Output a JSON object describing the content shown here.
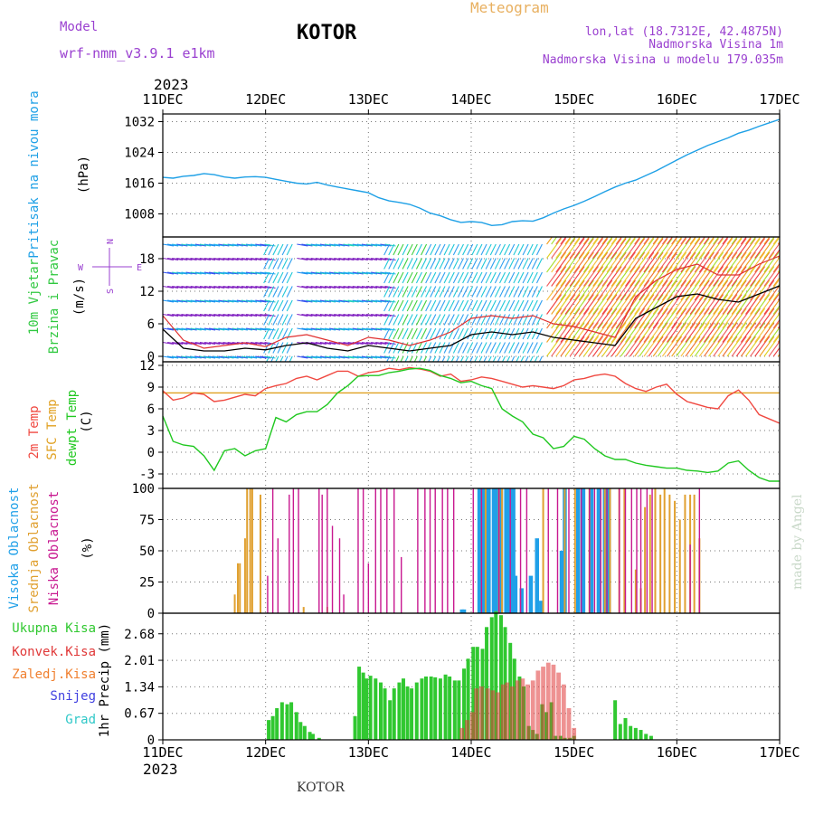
{
  "header": {
    "model_label": "Model",
    "model_name": "wrf-nmm_v3.9.1  e1km",
    "station": "KOTOR",
    "meteogram": "Meteogram",
    "lonlat": "lon,lat (18.7312E, 42.4875N)",
    "elevation": "Nadmorska Visina 1m",
    "model_elevation": "Nadmorska Visina u modelu 179.035m",
    "footer_station": "KOTOR",
    "credit": "made by Angel"
  },
  "colors": {
    "pressure": "#1ea0e6",
    "temp2m": "#f04840",
    "sfc": "#e0a020",
    "dew": "#20c820",
    "high_cloud": "#20a0e8",
    "mid_cloud": "#e0a030",
    "low_cloud": "#c81890",
    "total_precip": "#30c830",
    "conv_precip": "#e03838",
    "ice": "#f08030",
    "snow": "#4040e0",
    "hail": "#30c8c8",
    "wind_purple": "#8020c0",
    "wind_green": "#30c840"
  },
  "chart_data": [
    {
      "type": "line",
      "panel": "pressure",
      "year": "2023",
      "date_ticks": [
        "11DEC",
        "12DEC",
        "13DEC",
        "14DEC",
        "15DEC",
        "16DEC",
        "17DEC"
      ],
      "x_unit": "day",
      "xlim": [
        0,
        6
      ],
      "ylabel": [
        "Pritisak na nivou mora",
        "(hPa)"
      ],
      "yticks": [
        1008,
        1016,
        1024,
        1032
      ],
      "ylim": [
        1002,
        1034
      ],
      "series": [
        {
          "key": "pressure",
          "x": [
            0,
            0.1,
            0.2,
            0.3,
            0.4,
            0.5,
            0.6,
            0.7,
            0.8,
            0.9,
            1,
            1.1,
            1.2,
            1.3,
            1.4,
            1.5,
            1.6,
            1.7,
            1.8,
            1.9,
            2,
            2.1,
            2.2,
            2.3,
            2.4,
            2.5,
            2.6,
            2.7,
            2.8,
            2.9,
            3,
            3.1,
            3.2,
            3.3,
            3.4,
            3.5,
            3.6,
            3.7,
            3.8,
            3.9,
            4,
            4.1,
            4.2,
            4.3,
            4.4,
            4.5,
            4.6,
            4.7,
            4.8,
            4.9,
            5,
            5.1,
            5.2,
            5.3,
            5.4,
            5.5,
            5.6,
            5.7,
            5.8,
            5.9,
            6
          ],
          "y": [
            1017.5,
            1017.3,
            1017.8,
            1018.0,
            1018.5,
            1018.2,
            1017.6,
            1017.3,
            1017.6,
            1017.7,
            1017.5,
            1017.0,
            1016.5,
            1016.0,
            1015.8,
            1016.2,
            1015.5,
            1015.0,
            1014.5,
            1014.0,
            1013.5,
            1012.2,
            1011.4,
            1011.0,
            1010.5,
            1009.5,
            1008.2,
            1007.5,
            1006.5,
            1005.8,
            1006.0,
            1005.8,
            1005.0,
            1005.2,
            1006.0,
            1006.2,
            1006.1,
            1007.0,
            1008.2,
            1009.3,
            1010.2,
            1011.3,
            1012.5,
            1013.8,
            1015.0,
            1016.0,
            1016.8,
            1018.0,
            1019.2,
            1020.6,
            1022.0,
            1023.4,
            1024.6,
            1025.8,
            1026.8,
            1027.8,
            1029.0,
            1029.8,
            1030.8,
            1031.7,
            1032.6
          ]
        }
      ]
    },
    {
      "type": "line",
      "panel": "wind",
      "ylabel": [
        "10m Vjetar",
        "Brzina i Pravac",
        "(m/s)"
      ],
      "direction_key": {
        "w": "W",
        "e": "E",
        "n": "N",
        "s": "S"
      },
      "yticks": [
        0,
        6,
        12,
        18
      ],
      "ylim": [
        -1,
        22
      ],
      "series": [
        {
          "key": "speed_black",
          "x": [
            0,
            0.2,
            0.4,
            0.6,
            0.8,
            1,
            1.2,
            1.4,
            1.6,
            1.8,
            2,
            2.2,
            2.4,
            2.6,
            2.8,
            3,
            3.2,
            3.4,
            3.6,
            3.8,
            4,
            4.2,
            4.4,
            4.6,
            4.8,
            5,
            5.2,
            5.4,
            5.6,
            5.8,
            6
          ],
          "y": [
            5.0,
            1.5,
            1.0,
            1.0,
            1.5,
            1.2,
            2.0,
            2.5,
            1.5,
            1.0,
            2.0,
            1.5,
            1.0,
            1.5,
            2.0,
            4.0,
            4.5,
            4.0,
            4.5,
            3.5,
            3.0,
            2.5,
            2.0,
            7.0,
            9.0,
            11.0,
            11.5,
            10.5,
            10.0,
            11.5,
            13.0
          ]
        },
        {
          "key": "speed_red",
          "x": [
            0,
            0.2,
            0.4,
            0.6,
            0.8,
            1,
            1.2,
            1.4,
            1.6,
            1.8,
            2,
            2.2,
            2.4,
            2.6,
            2.8,
            3,
            3.2,
            3.4,
            3.6,
            3.8,
            4,
            4.2,
            4.4,
            4.6,
            4.8,
            5,
            5.2,
            5.4,
            5.6,
            5.8,
            6
          ],
          "y": [
            7.5,
            3.0,
            1.5,
            2.0,
            2.5,
            1.8,
            3.5,
            4.0,
            3.0,
            2.0,
            3.5,
            3.0,
            2.0,
            3.0,
            4.5,
            7.0,
            7.5,
            7.0,
            7.5,
            6.0,
            5.5,
            4.5,
            3.5,
            11.0,
            14.0,
            16.0,
            17.0,
            15.0,
            15.0,
            17.0,
            18.5
          ]
        }
      ]
    },
    {
      "type": "line",
      "panel": "temperature",
      "ylabel": [
        "2m Temp",
        "SFC Temp",
        "dewpt Temp",
        "(C)"
      ],
      "yticks": [
        -3,
        0,
        3,
        6,
        9,
        12
      ],
      "ylim": [
        -5,
        12.5
      ],
      "series": [
        {
          "key": "temp2m",
          "x": [
            0,
            0.1,
            0.2,
            0.3,
            0.4,
            0.5,
            0.6,
            0.7,
            0.8,
            0.9,
            1,
            1.1,
            1.2,
            1.3,
            1.4,
            1.5,
            1.6,
            1.7,
            1.8,
            1.9,
            2,
            2.1,
            2.2,
            2.3,
            2.4,
            2.5,
            2.6,
            2.7,
            2.8,
            2.9,
            3,
            3.1,
            3.2,
            3.3,
            3.4,
            3.5,
            3.6,
            3.7,
            3.8,
            3.9,
            4,
            4.1,
            4.2,
            4.3,
            4.4,
            4.5,
            4.6,
            4.7,
            4.8,
            4.9,
            5,
            5.1,
            5.2,
            5.3,
            5.4,
            5.5,
            5.6,
            5.7,
            5.8,
            5.9,
            6
          ],
          "y": [
            8.5,
            7.2,
            7.5,
            8.2,
            8.0,
            7.0,
            7.2,
            7.6,
            8.0,
            7.8,
            8.8,
            9.2,
            9.5,
            10.2,
            10.5,
            10.0,
            10.6,
            11.2,
            11.2,
            10.5,
            11.0,
            11.2,
            11.6,
            11.4,
            11.7,
            11.5,
            11.2,
            10.5,
            10.8,
            9.8,
            10.0,
            10.4,
            10.2,
            9.8,
            9.4,
            9.0,
            9.2,
            9.0,
            8.8,
            9.2,
            10.0,
            10.2,
            10.6,
            10.8,
            10.5,
            9.5,
            8.8,
            8.4,
            9.0,
            9.4,
            8.0,
            7.0,
            6.6,
            6.2,
            6.0,
            7.8,
            8.6,
            7.2,
            5.2,
            4.6,
            4.0
          ]
        },
        {
          "key": "sfc",
          "x": [
            0,
            6
          ],
          "y": [
            8.2,
            8.2
          ]
        },
        {
          "key": "dew",
          "x": [
            0,
            0.1,
            0.2,
            0.3,
            0.4,
            0.5,
            0.6,
            0.7,
            0.8,
            0.9,
            1,
            1.1,
            1.2,
            1.3,
            1.4,
            1.5,
            1.6,
            1.7,
            1.8,
            1.9,
            2,
            2.1,
            2.2,
            2.3,
            2.4,
            2.5,
            2.6,
            2.7,
            2.8,
            2.9,
            3,
            3.1,
            3.2,
            3.3,
            3.4,
            3.5,
            3.6,
            3.7,
            3.8,
            3.9,
            4,
            4.1,
            4.2,
            4.3,
            4.4,
            4.5,
            4.6,
            4.7,
            4.8,
            4.9,
            5,
            5.1,
            5.2,
            5.3,
            5.4,
            5.5,
            5.6,
            5.7,
            5.8,
            5.9,
            6
          ],
          "y": [
            5.0,
            1.5,
            1.0,
            0.8,
            -0.5,
            -2.5,
            0.2,
            0.5,
            -0.5,
            0.2,
            0.5,
            4.8,
            4.2,
            5.2,
            5.6,
            5.6,
            6.6,
            8.2,
            9.2,
            10.5,
            10.6,
            10.6,
            11.0,
            11.2,
            11.5,
            11.6,
            11.3,
            10.6,
            10.2,
            9.6,
            9.8,
            9.2,
            8.8,
            6.0,
            5.0,
            4.2,
            2.5,
            2.0,
            0.5,
            0.8,
            2.2,
            1.8,
            0.5,
            -0.5,
            -1.0,
            -1.0,
            -1.5,
            -1.8,
            -2.0,
            -2.2,
            -2.2,
            -2.5,
            -2.6,
            -2.8,
            -2.6,
            -1.5,
            -1.2,
            -2.5,
            -3.5,
            -4.0,
            -4.0
          ]
        }
      ]
    },
    {
      "type": "bar",
      "panel": "cloud",
      "ylabel": [
        "Visoka Oblacnost",
        "Srednja Oblacnost",
        "Niska Oblacnost",
        "(%)"
      ],
      "yticks": [
        0,
        25,
        50,
        75,
        100
      ],
      "ylim": [
        0,
        100
      ],
      "series": [
        {
          "key": "high_cloud",
          "x": [
            2.91,
            2.93,
            3.08,
            3.1,
            3.12,
            3.15,
            3.17,
            3.22,
            3.24,
            3.27,
            3.29,
            3.34,
            3.36,
            3.38,
            3.41,
            3.43,
            3.49,
            3.58,
            3.64,
            3.68,
            3.88,
            3.91,
            4.04,
            4.09,
            4.17,
            4.24,
            4.3,
            4.34
          ],
          "y": [
            3,
            3,
            100,
            100,
            100,
            100,
            100,
            100,
            100,
            100,
            100,
            100,
            100,
            100,
            100,
            30,
            20,
            30,
            60,
            10,
            50,
            100,
            100,
            100,
            100,
            100,
            100,
            100
          ]
        },
        {
          "key": "mid_cloud",
          "x": [
            0.7,
            0.73,
            0.75,
            0.8,
            0.82,
            0.85,
            0.87,
            0.95,
            1.37,
            1.6,
            3.14,
            3.27,
            3.3,
            3.7,
            3.91,
            4.01,
            4.15,
            4.3,
            4.35,
            4.44,
            4.49,
            4.6,
            4.65,
            4.69,
            4.74,
            4.79,
            4.84,
            4.88,
            4.93,
            4.98,
            5.03,
            5.08,
            5.13,
            5.17,
            5.22
          ],
          "y": [
            15,
            40,
            40,
            60,
            100,
            100,
            100,
            95,
            5,
            5,
            100,
            100,
            100,
            100,
            100,
            100,
            100,
            100,
            100,
            100,
            100,
            35,
            20,
            85,
            95,
            100,
            95,
            100,
            95,
            90,
            75,
            95,
            95,
            95,
            60
          ]
        },
        {
          "key": "low_cloud",
          "x": [
            1.02,
            1.07,
            1.12,
            1.23,
            1.27,
            1.32,
            1.52,
            1.55,
            1.6,
            1.65,
            1.72,
            1.76,
            1.9,
            1.95,
            2.0,
            2.07,
            2.12,
            2.18,
            2.25,
            2.32,
            2.48,
            2.55,
            2.6,
            2.65,
            2.72,
            2.77,
            2.83,
            3.02,
            3.1,
            3.27,
            3.38,
            3.48,
            3.54,
            3.75,
            3.84,
            3.95,
            4.07,
            4.15,
            4.2,
            4.26,
            4.32,
            4.44,
            4.5,
            4.56,
            4.61,
            4.65,
            4.71,
            4.76,
            5.13,
            5.22
          ],
          "y": [
            30,
            100,
            60,
            95,
            100,
            100,
            100,
            95,
            100,
            70,
            60,
            15,
            100,
            100,
            40,
            100,
            100,
            100,
            100,
            45,
            100,
            100,
            100,
            100,
            100,
            100,
            100,
            100,
            100,
            100,
            100,
            100,
            100,
            100,
            100,
            100,
            100,
            100,
            100,
            100,
            100,
            100,
            100,
            100,
            100,
            100,
            100,
            100,
            55,
            100
          ]
        }
      ]
    },
    {
      "type": "bar",
      "panel": "precip",
      "ylabel": [
        "1hr Precip (mm)"
      ],
      "legend": [
        "Ukupna  Kisa",
        "Konvek.Kisa",
        "Zaledj.Kisa",
        "Snijeg",
        "Grad"
      ],
      "yticks": [
        0,
        0.67,
        1.34,
        2.01,
        2.68
      ],
      "ylim": [
        0,
        3.2
      ],
      "series": [
        {
          "key": "total_precip",
          "x": [
            1.03,
            1.07,
            1.11,
            1.16,
            1.21,
            1.25,
            1.3,
            1.34,
            1.38,
            1.43,
            1.46,
            1.52,
            1.87,
            1.91,
            1.95,
            1.98,
            2.02,
            2.07,
            2.12,
            2.16,
            2.21,
            2.25,
            2.3,
            2.34,
            2.38,
            2.42,
            2.47,
            2.52,
            2.56,
            2.61,
            2.65,
            2.7,
            2.75,
            2.79,
            2.84,
            2.88,
            2.93,
            2.97,
            3.02,
            3.06,
            3.11,
            3.15,
            3.2,
            3.24,
            3.29,
            3.33,
            3.38,
            3.42,
            3.47,
            3.51,
            3.56,
            3.6,
            3.64,
            3.69,
            3.73,
            3.78,
            3.82,
            3.87,
            3.91,
            3.96,
            4.0,
            4.4,
            4.45,
            4.5,
            4.55,
            4.6,
            4.65,
            4.7,
            4.75
          ],
          "y": [
            0.5,
            0.6,
            0.8,
            0.95,
            0.9,
            0.95,
            0.7,
            0.45,
            0.35,
            0.2,
            0.15,
            0.05,
            0.6,
            1.85,
            1.7,
            1.55,
            1.62,
            1.55,
            1.45,
            1.3,
            1.0,
            1.3,
            1.45,
            1.55,
            1.35,
            1.3,
            1.45,
            1.55,
            1.6,
            1.6,
            1.58,
            1.55,
            1.65,
            1.6,
            1.5,
            1.5,
            1.8,
            2.05,
            2.35,
            2.35,
            2.3,
            2.85,
            3.1,
            3.25,
            3.15,
            2.85,
            2.45,
            2.05,
            1.6,
            1.35,
            0.35,
            0.25,
            0.15,
            0.9,
            0.7,
            0.95,
            0.1,
            0.1,
            0.05,
            0.05,
            0.1,
            1.0,
            0.4,
            0.55,
            0.35,
            0.3,
            0.25,
            0.15,
            0.1
          ]
        },
        {
          "key": "conv_precip",
          "x": [
            2.91,
            2.96,
            3.01,
            3.05,
            3.1,
            3.16,
            3.21,
            3.26,
            3.31,
            3.35,
            3.4,
            3.45,
            3.5,
            3.55,
            3.6,
            3.65,
            3.7,
            3.75,
            3.8,
            3.85,
            3.9,
            3.95,
            4.0
          ],
          "y": [
            0.3,
            0.5,
            0.7,
            1.3,
            1.35,
            1.3,
            1.25,
            1.2,
            1.4,
            1.45,
            1.35,
            1.5,
            1.55,
            1.4,
            1.5,
            1.75,
            1.85,
            1.95,
            1.9,
            1.7,
            1.4,
            0.8,
            0.3
          ]
        }
      ]
    }
  ]
}
